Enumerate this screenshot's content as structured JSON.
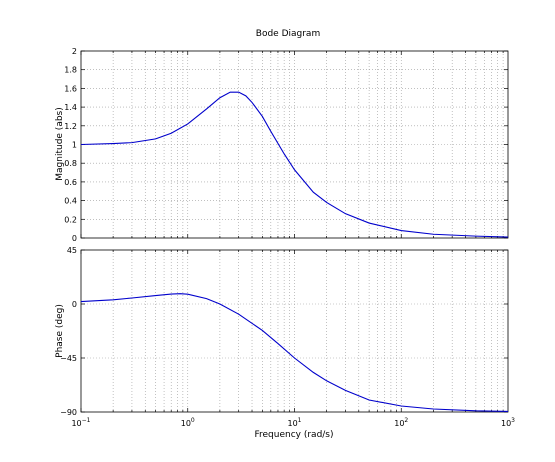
{
  "chart_data": [
    {
      "type": "line",
      "title": "Bode Diagram",
      "xlabel": "",
      "ylabel": "Magnitude (abs)",
      "xscale": "log",
      "xlim": [
        0.1,
        1000
      ],
      "ylim": [
        0,
        2
      ],
      "yticks": [
        "0",
        "0.2",
        "0.4",
        "0.6",
        "0.8",
        "1",
        "1.2",
        "1.4",
        "1.6",
        "1.8",
        "2"
      ],
      "grid": true,
      "line_color": "#0000cc",
      "series": [
        {
          "x": [
            0.1,
            0.2,
            0.3,
            0.5,
            0.7,
            1,
            1.5,
            2,
            2.5,
            3,
            3.5,
            4,
            5,
            6,
            8,
            10,
            15,
            20,
            30,
            50,
            100,
            200,
            500,
            1000
          ],
          "y": [
            1.0,
            1.01,
            1.02,
            1.06,
            1.12,
            1.22,
            1.38,
            1.5,
            1.56,
            1.56,
            1.52,
            1.45,
            1.3,
            1.14,
            0.9,
            0.73,
            0.49,
            0.38,
            0.26,
            0.16,
            0.08,
            0.04,
            0.02,
            0.01
          ]
        }
      ]
    },
    {
      "type": "line",
      "xlabel": "Frequency  (rad/s)",
      "ylabel": "Phase (deg)",
      "xscale": "log",
      "xlim": [
        0.1,
        1000
      ],
      "ylim": [
        -90,
        45
      ],
      "yticks": [
        "−90",
        "−45",
        "0",
        "45"
      ],
      "xticks": [
        {
          "base": "10",
          "exp": "−1"
        },
        {
          "base": "10",
          "exp": "0"
        },
        {
          "base": "10",
          "exp": "1"
        },
        {
          "base": "10",
          "exp": "2"
        },
        {
          "base": "10",
          "exp": "3"
        }
      ],
      "grid": true,
      "line_color": "#0000cc",
      "series": [
        {
          "x": [
            0.1,
            0.2,
            0.3,
            0.5,
            0.7,
            0.85,
            1,
            1.5,
            2,
            3,
            5,
            7,
            10,
            15,
            20,
            30,
            50,
            100,
            200,
            500,
            1000
          ],
          "y": [
            2,
            3.5,
            5,
            7,
            8.3,
            8.6,
            8.2,
            4.5,
            0,
            -8.5,
            -22,
            -33,
            -45,
            -57,
            -64,
            -72,
            -80,
            -85,
            -87.5,
            -89,
            -89.5
          ]
        }
      ]
    }
  ]
}
